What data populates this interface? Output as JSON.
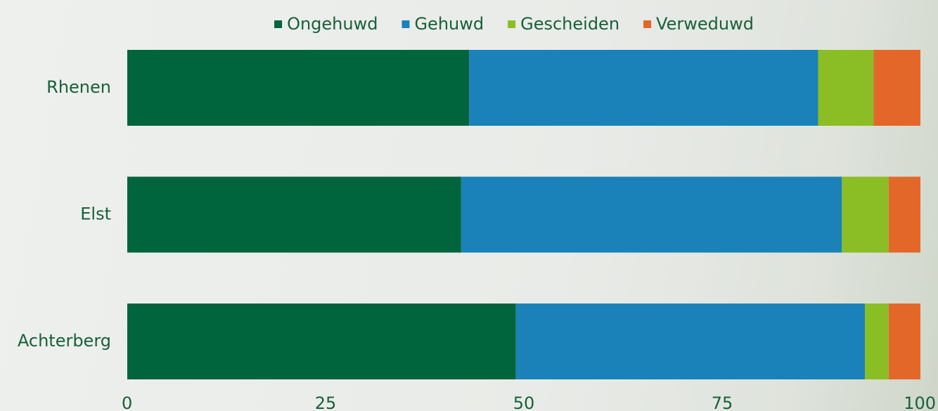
{
  "chart_data": {
    "type": "stacked-bar-horizontal",
    "categories": [
      "Rhenen",
      "Elst",
      "Achterberg"
    ],
    "series": [
      {
        "name": "Ongehuwd",
        "color": "#00643c",
        "values": [
          43.1,
          42.1,
          49.0
        ]
      },
      {
        "name": "Gehuwd",
        "color": "#1a82b8",
        "values": [
          44.0,
          48.0,
          44.0
        ]
      },
      {
        "name": "Gescheiden",
        "color": "#8bbe25",
        "values": [
          7.0,
          5.9,
          3.0
        ]
      },
      {
        "name": "Verweduwd",
        "color": "#e4672a",
        "values": [
          5.9,
          4.0,
          4.0
        ]
      }
    ],
    "xlim": [
      0,
      100
    ],
    "xticks": [
      0,
      25,
      50,
      75,
      100
    ],
    "legend": "top"
  }
}
